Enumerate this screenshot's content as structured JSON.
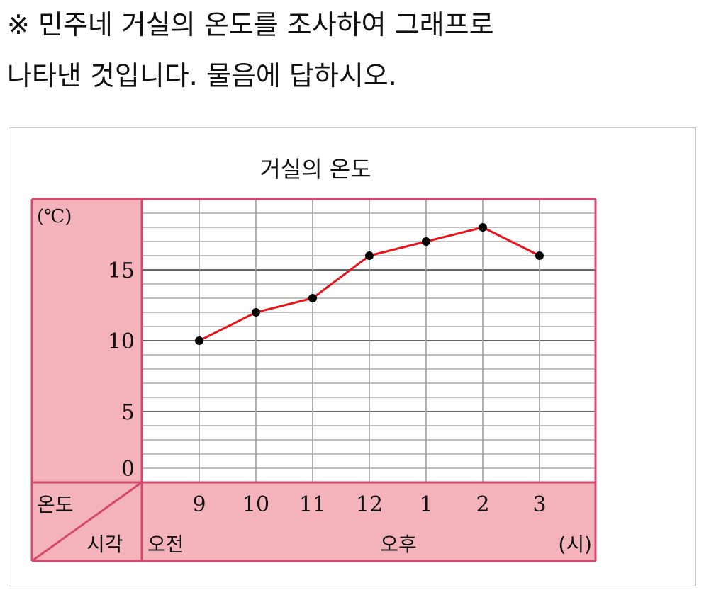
{
  "question": {
    "line1": "※ 민주네 거실의 온도를 조사하여 그래프로",
    "line2": "나타낸 것입니다. 물음에 답하시오."
  },
  "chart_data": {
    "type": "line",
    "title": "거실의 온도",
    "ylabel": "(℃)",
    "xlabel": "(시)",
    "corner_top": "온도",
    "corner_bottom": "시각",
    "am_label": "오전",
    "pm_label": "오후",
    "categories": [
      "9",
      "10",
      "11",
      "12",
      "1",
      "2",
      "3"
    ],
    "values": [
      10,
      12,
      13,
      16,
      17,
      18,
      16
    ],
    "yticks": [
      15,
      10,
      5,
      0
    ],
    "ylim": [
      0,
      20
    ],
    "grid": true,
    "colors": {
      "line": "#e8141c",
      "marker": "#000000",
      "panel": "#f4b3bb",
      "border": "#d6496e",
      "grid": "#888888"
    }
  }
}
